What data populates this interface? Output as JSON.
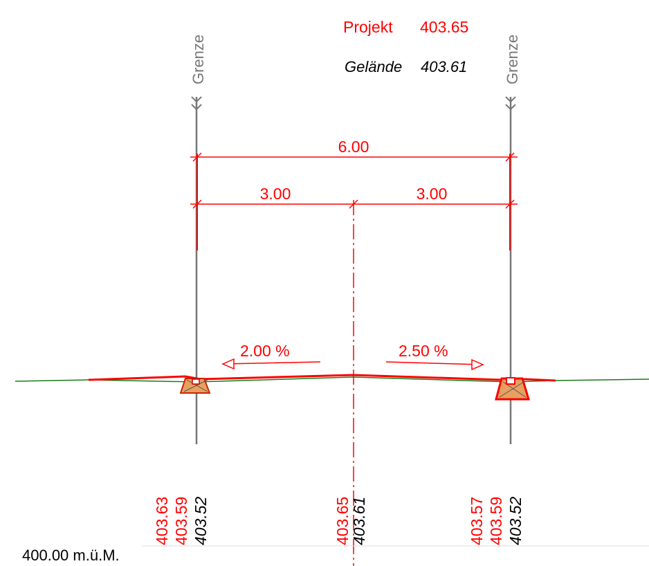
{
  "header": {
    "projekt_label": "Projekt",
    "projekt_value": "403.65",
    "gelaende_label": "Gelände",
    "gelaende_value": "403.61"
  },
  "boundaries": {
    "left_label": "Grenze",
    "right_label": "Grenze"
  },
  "dimensions": {
    "total": "6.00",
    "left_half": "3.00",
    "right_half": "3.00"
  },
  "slopes": {
    "left": "2.00 %",
    "right": "2.50 %"
  },
  "datum": "400.00 m.ü.M.",
  "stations": {
    "left": [
      "403.63",
      "403.59",
      "403.52"
    ],
    "center": [
      "403.65",
      "403.61"
    ],
    "right": [
      "403.57",
      "403.59",
      "403.52"
    ]
  },
  "colors": {
    "project": "#ff0000",
    "terrain": "#1a7a1a",
    "boundary": "#777777",
    "curb_fill": "#e8a060"
  }
}
